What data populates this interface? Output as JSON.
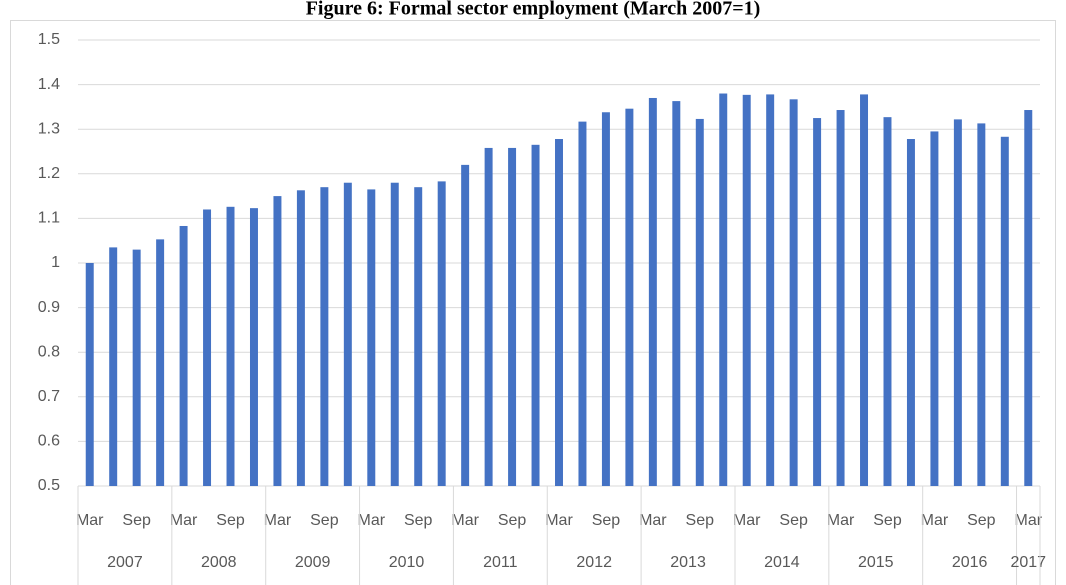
{
  "chart_data": {
    "type": "bar",
    "title": "Figure 6: Formal sector employment (March 2007=1)",
    "categories": [
      "Mar",
      null,
      "Sep",
      null,
      "Mar",
      null,
      "Sep",
      null,
      "Mar",
      null,
      "Sep",
      null,
      "Mar",
      null,
      "Sep",
      null,
      "Mar",
      null,
      "Sep",
      null,
      "Mar",
      null,
      "Sep",
      null,
      "Mar",
      null,
      "Sep",
      null,
      "Mar",
      null,
      "Sep",
      null,
      "Mar",
      null,
      "Sep",
      null,
      "Mar",
      null,
      "Sep",
      null,
      "Mar"
    ],
    "years": [
      "2007",
      "2008",
      "2009",
      "2010",
      "2011",
      "2012",
      "2013",
      "2014",
      "2015",
      "2016",
      "2017"
    ],
    "values": [
      1.0,
      1.035,
      1.03,
      1.053,
      1.083,
      1.12,
      1.126,
      1.123,
      1.15,
      1.163,
      1.17,
      1.18,
      1.165,
      1.18,
      1.17,
      1.183,
      1.22,
      1.258,
      1.258,
      1.265,
      1.278,
      1.317,
      1.338,
      1.346,
      1.37,
      1.363,
      1.323,
      1.38,
      1.377,
      1.378,
      1.367,
      1.325,
      1.343,
      1.378,
      1.327,
      1.278,
      1.295,
      1.322,
      1.313,
      1.283,
      1.343
    ],
    "color": "#4472c4",
    "ylim": [
      0.5,
      1.5
    ],
    "yticks": [
      0.5,
      0.6,
      0.7,
      0.8,
      0.9,
      1,
      1.1,
      1.2,
      1.3,
      1.4,
      1.5
    ],
    "grid": true
  }
}
